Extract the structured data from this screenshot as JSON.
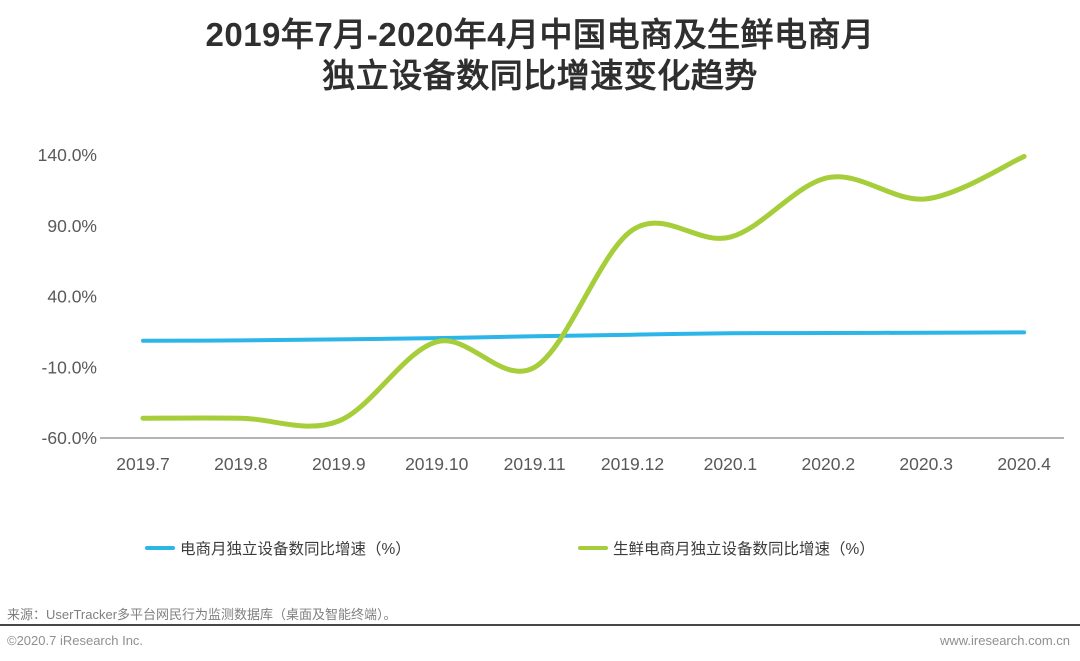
{
  "title": {
    "line1": "2019年7月-2020年4月中国电商及生鲜电商月",
    "line2": "独立设备数同比增速变化趋势"
  },
  "colors": {
    "ecommerce_line": "#2bb5e9",
    "fresh_line": "#a6ce3a",
    "axis_line": "#9b9b9b",
    "axis_label": "#595959",
    "title_text": "#2f2f2f",
    "legend_text": "#3c3c3c",
    "source_text": "#7f7f7f",
    "divider": "#474747",
    "footer_text": "#8f8f8f"
  },
  "chart_data": {
    "type": "line",
    "title": "2019年7月-2020年4月中国电商及生鲜电商月独立设备数同比增速变化趋势",
    "categories": [
      "2019.7",
      "2019.8",
      "2019.9",
      "2019.10",
      "2019.11",
      "2019.12",
      "2020.1",
      "2020.2",
      "2020.3",
      "2020.4"
    ],
    "series": [
      {
        "name": "电商月独立设备数同比增速（%）",
        "color_key": "ecommerce_line",
        "values": [
          8.7,
          9.0,
          9.7,
          10.6,
          11.9,
          13.0,
          14.0,
          14.2,
          14.4,
          14.6
        ]
      },
      {
        "name": "生鲜电商月独立设备数同比增速（%）",
        "color_key": "fresh_line",
        "values": [
          -46,
          -46,
          -48,
          8,
          -10,
          87,
          82,
          124,
          109,
          139
        ]
      }
    ],
    "y_ticks": [
      "140.0%",
      "90.0%",
      "40.0%",
      "-10.0%",
      "-60.0%"
    ],
    "y_tick_values": [
      140,
      90,
      40,
      -10,
      -60
    ],
    "ylim": [
      -60,
      150
    ],
    "xlabel": "",
    "ylabel": "",
    "grid": false,
    "smooth": true,
    "legend_position": "bottom"
  },
  "footer": {
    "source": "来源：UserTracker多平台网民行为监测数据库（桌面及智能终端）。",
    "copyright": "©2020.7 iResearch Inc.",
    "website": "www.iresearch.com.cn"
  }
}
